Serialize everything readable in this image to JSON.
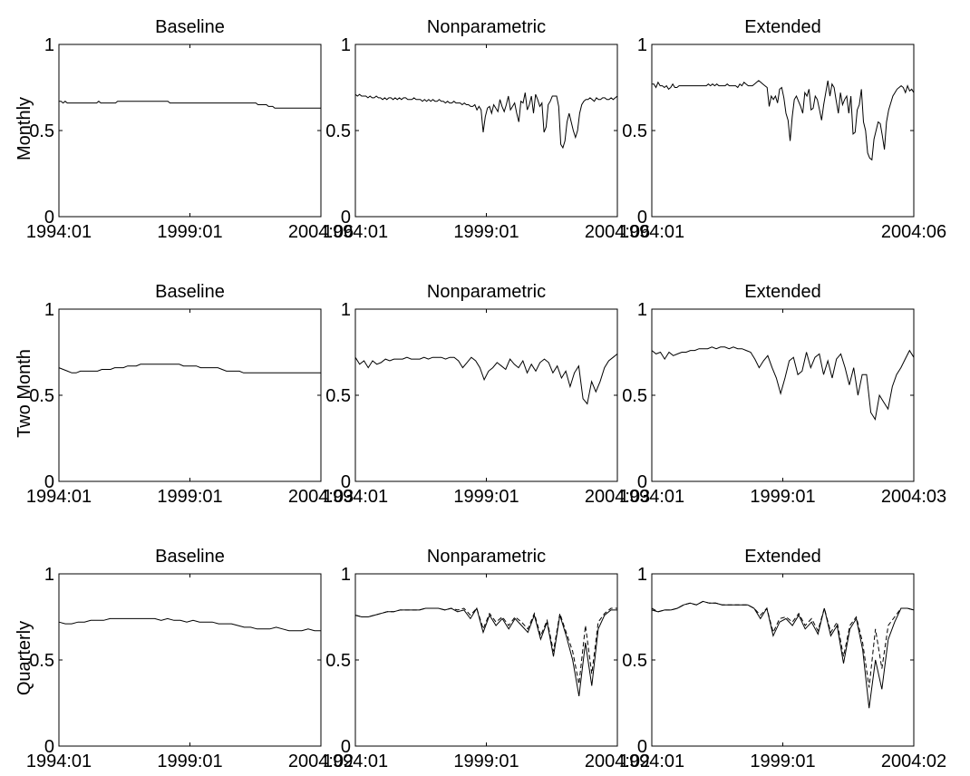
{
  "figure": {
    "row_labels": [
      "Monthly",
      "Two Month",
      "Quarterly"
    ],
    "col_titles": [
      "Baseline",
      "Nonparametric",
      "Extended"
    ]
  },
  "chart_data": [
    {
      "type": "line",
      "title": "Baseline",
      "row_label": "Monthly",
      "xtick_labels": [
        "1994:01",
        "1999:01",
        "2004:06"
      ],
      "ylim": [
        0,
        1
      ],
      "yticks": [
        0,
        0.5,
        1
      ],
      "series": [
        {
          "style": "solid",
          "values": [
            0.67,
            0.67,
            0.66,
            0.67,
            0.66,
            0.66,
            0.66,
            0.66,
            0.66,
            0.66,
            0.66,
            0.66,
            0.66,
            0.66,
            0.66,
            0.66,
            0.66,
            0.66,
            0.66,
            0.67,
            0.66,
            0.66,
            0.66,
            0.66,
            0.66,
            0.66,
            0.66,
            0.66,
            0.67,
            0.67,
            0.67,
            0.67,
            0.67,
            0.67,
            0.67,
            0.67,
            0.67,
            0.67,
            0.67,
            0.67,
            0.67,
            0.67,
            0.67,
            0.67,
            0.67,
            0.67,
            0.67,
            0.67,
            0.67,
            0.67,
            0.67,
            0.67,
            0.67,
            0.66,
            0.66,
            0.66,
            0.66,
            0.66,
            0.66,
            0.66,
            0.66,
            0.66,
            0.66,
            0.66,
            0.66,
            0.66,
            0.66,
            0.66,
            0.66,
            0.66,
            0.66,
            0.66,
            0.66,
            0.66,
            0.66,
            0.66,
            0.66,
            0.66,
            0.66,
            0.66,
            0.66,
            0.66,
            0.66,
            0.66,
            0.66,
            0.66,
            0.66,
            0.66,
            0.66,
            0.66,
            0.66,
            0.66,
            0.66,
            0.66,
            0.66,
            0.65,
            0.65,
            0.65,
            0.65,
            0.65,
            0.64,
            0.64,
            0.64,
            0.63,
            0.63,
            0.63,
            0.63,
            0.63,
            0.63,
            0.63,
            0.63,
            0.63,
            0.63,
            0.63,
            0.63,
            0.63,
            0.63,
            0.63,
            0.63,
            0.63,
            0.63,
            0.63,
            0.63,
            0.63,
            0.63,
            0.63
          ]
        }
      ]
    },
    {
      "type": "line",
      "title": "Nonparametric",
      "row_label": "Monthly",
      "xtick_labels": [
        "1994:01",
        "1999:01",
        "2004:06"
      ],
      "ylim": [
        0,
        1
      ],
      "yticks": [
        0,
        0.5,
        1
      ],
      "series": [
        {
          "style": "solid",
          "values": [
            0.71,
            0.7,
            0.71,
            0.7,
            0.7,
            0.7,
            0.69,
            0.7,
            0.69,
            0.69,
            0.7,
            0.69,
            0.69,
            0.68,
            0.69,
            0.68,
            0.69,
            0.69,
            0.68,
            0.69,
            0.68,
            0.69,
            0.68,
            0.69,
            0.69,
            0.68,
            0.68,
            0.68,
            0.69,
            0.68,
            0.68,
            0.68,
            0.67,
            0.68,
            0.67,
            0.68,
            0.67,
            0.68,
            0.67,
            0.67,
            0.68,
            0.67,
            0.67,
            0.66,
            0.67,
            0.66,
            0.66,
            0.67,
            0.66,
            0.66,
            0.66,
            0.65,
            0.66,
            0.65,
            0.65,
            0.64,
            0.64,
            0.65,
            0.62,
            0.64,
            0.62,
            0.49,
            0.58,
            0.63,
            0.64,
            0.6,
            0.65,
            0.63,
            0.61,
            0.68,
            0.64,
            0.61,
            0.65,
            0.7,
            0.62,
            0.64,
            0.66,
            0.6,
            0.55,
            0.67,
            0.66,
            0.72,
            0.62,
            0.65,
            0.7,
            0.6,
            0.71,
            0.68,
            0.64,
            0.66,
            0.49,
            0.52,
            0.65,
            0.67,
            0.7,
            0.7,
            0.7,
            0.64,
            0.42,
            0.4,
            0.44,
            0.55,
            0.6,
            0.55,
            0.5,
            0.46,
            0.5,
            0.6,
            0.65,
            0.67,
            0.68,
            0.68,
            0.69,
            0.68,
            0.67,
            0.69,
            0.68,
            0.68,
            0.69,
            0.69,
            0.68,
            0.68,
            0.69,
            0.68,
            0.69,
            0.7
          ]
        }
      ]
    },
    {
      "type": "line",
      "title": "Extended",
      "row_label": "Monthly",
      "xtick_labels": [
        "1994:01",
        "2004:06"
      ],
      "ylim": [
        0,
        1
      ],
      "yticks": [
        0,
        0.5,
        1
      ],
      "series": [
        {
          "style": "solid",
          "values": [
            0.77,
            0.77,
            0.75,
            0.78,
            0.76,
            0.76,
            0.75,
            0.76,
            0.74,
            0.75,
            0.77,
            0.75,
            0.75,
            0.76,
            0.76,
            0.76,
            0.76,
            0.76,
            0.76,
            0.76,
            0.76,
            0.76,
            0.76,
            0.76,
            0.76,
            0.76,
            0.76,
            0.77,
            0.76,
            0.77,
            0.76,
            0.77,
            0.76,
            0.76,
            0.76,
            0.76,
            0.77,
            0.76,
            0.76,
            0.76,
            0.76,
            0.75,
            0.77,
            0.76,
            0.78,
            0.77,
            0.76,
            0.76,
            0.76,
            0.77,
            0.78,
            0.79,
            0.78,
            0.77,
            0.76,
            0.75,
            0.64,
            0.7,
            0.68,
            0.7,
            0.66,
            0.74,
            0.75,
            0.69,
            0.6,
            0.56,
            0.44,
            0.58,
            0.68,
            0.7,
            0.67,
            0.64,
            0.6,
            0.72,
            0.7,
            0.74,
            0.62,
            0.63,
            0.7,
            0.68,
            0.62,
            0.56,
            0.65,
            0.72,
            0.79,
            0.7,
            0.77,
            0.75,
            0.67,
            0.6,
            0.72,
            0.65,
            0.68,
            0.7,
            0.6,
            0.7,
            0.48,
            0.49,
            0.62,
            0.65,
            0.74,
            0.55,
            0.5,
            0.37,
            0.34,
            0.33,
            0.45,
            0.5,
            0.55,
            0.54,
            0.47,
            0.39,
            0.55,
            0.62,
            0.66,
            0.7,
            0.72,
            0.74,
            0.75,
            0.76,
            0.75,
            0.72,
            0.76,
            0.73,
            0.74,
            0.72
          ]
        }
      ]
    },
    {
      "type": "line",
      "title": "Baseline",
      "row_label": "Two Month",
      "xtick_labels": [
        "1994:01",
        "1999:01",
        "2004:03"
      ],
      "ylim": [
        0,
        1
      ],
      "yticks": [
        0,
        0.5,
        1
      ],
      "series": [
        {
          "style": "solid",
          "values": [
            0.66,
            0.65,
            0.64,
            0.63,
            0.63,
            0.64,
            0.64,
            0.64,
            0.64,
            0.64,
            0.65,
            0.65,
            0.65,
            0.66,
            0.66,
            0.66,
            0.67,
            0.67,
            0.67,
            0.68,
            0.68,
            0.68,
            0.68,
            0.68,
            0.68,
            0.68,
            0.68,
            0.68,
            0.68,
            0.67,
            0.67,
            0.67,
            0.67,
            0.66,
            0.66,
            0.66,
            0.66,
            0.66,
            0.65,
            0.64,
            0.64,
            0.64,
            0.64,
            0.63,
            0.63,
            0.63,
            0.63,
            0.63,
            0.63,
            0.63,
            0.63,
            0.63,
            0.63,
            0.63,
            0.63,
            0.63,
            0.63,
            0.63,
            0.63,
            0.63,
            0.63,
            0.63
          ]
        }
      ]
    },
    {
      "type": "line",
      "title": "Nonparametric",
      "row_label": "Two Month",
      "xtick_labels": [
        "1994:01",
        "1999:01",
        "2004:03"
      ],
      "ylim": [
        0,
        1
      ],
      "yticks": [
        0,
        0.5,
        1
      ],
      "series": [
        {
          "style": "solid",
          "values": [
            0.72,
            0.68,
            0.7,
            0.66,
            0.7,
            0.68,
            0.69,
            0.71,
            0.7,
            0.71,
            0.71,
            0.71,
            0.72,
            0.71,
            0.71,
            0.71,
            0.72,
            0.71,
            0.72,
            0.72,
            0.72,
            0.71,
            0.72,
            0.72,
            0.7,
            0.66,
            0.69,
            0.72,
            0.7,
            0.66,
            0.59,
            0.64,
            0.66,
            0.69,
            0.67,
            0.65,
            0.71,
            0.68,
            0.66,
            0.7,
            0.63,
            0.68,
            0.64,
            0.69,
            0.71,
            0.69,
            0.63,
            0.67,
            0.6,
            0.64,
            0.55,
            0.63,
            0.67,
            0.48,
            0.45,
            0.58,
            0.52,
            0.58,
            0.66,
            0.7,
            0.72,
            0.74
          ]
        }
      ]
    },
    {
      "type": "line",
      "title": "Extended",
      "row_label": "Two Month",
      "xtick_labels": [
        "1994:01",
        "1999:01",
        "2004:03"
      ],
      "ylim": [
        0,
        1
      ],
      "yticks": [
        0,
        0.5,
        1
      ],
      "series": [
        {
          "style": "solid",
          "values": [
            0.76,
            0.74,
            0.75,
            0.71,
            0.75,
            0.73,
            0.74,
            0.75,
            0.75,
            0.76,
            0.76,
            0.77,
            0.77,
            0.77,
            0.78,
            0.77,
            0.78,
            0.78,
            0.77,
            0.78,
            0.77,
            0.77,
            0.76,
            0.75,
            0.71,
            0.66,
            0.7,
            0.73,
            0.66,
            0.6,
            0.51,
            0.6,
            0.7,
            0.72,
            0.62,
            0.64,
            0.75,
            0.66,
            0.72,
            0.74,
            0.62,
            0.7,
            0.6,
            0.71,
            0.74,
            0.66,
            0.56,
            0.66,
            0.5,
            0.62,
            0.62,
            0.4,
            0.36,
            0.5,
            0.46,
            0.42,
            0.55,
            0.62,
            0.66,
            0.71,
            0.76,
            0.72
          ]
        }
      ]
    },
    {
      "type": "line",
      "title": "Baseline",
      "row_label": "Quarterly",
      "xtick_labels": [
        "1994:01",
        "1999:01",
        "2004:02"
      ],
      "ylim": [
        0,
        1
      ],
      "yticks": [
        0,
        0.5,
        1
      ],
      "series": [
        {
          "style": "solid",
          "values": [
            0.72,
            0.71,
            0.71,
            0.72,
            0.72,
            0.73,
            0.73,
            0.73,
            0.74,
            0.74,
            0.74,
            0.74,
            0.74,
            0.74,
            0.74,
            0.74,
            0.73,
            0.74,
            0.73,
            0.73,
            0.72,
            0.73,
            0.72,
            0.72,
            0.72,
            0.71,
            0.71,
            0.71,
            0.7,
            0.69,
            0.69,
            0.68,
            0.68,
            0.68,
            0.69,
            0.68,
            0.67,
            0.67,
            0.67,
            0.68,
            0.67,
            0.67
          ]
        }
      ]
    },
    {
      "type": "line",
      "title": "Nonparametric",
      "row_label": "Quarterly",
      "xtick_labels": [
        "1994:01",
        "1999:01",
        "2004:02"
      ],
      "ylim": [
        0,
        1
      ],
      "yticks": [
        0,
        0.5,
        1
      ],
      "series": [
        {
          "style": "solid",
          "values": [
            0.76,
            0.75,
            0.75,
            0.76,
            0.77,
            0.78,
            0.78,
            0.79,
            0.79,
            0.79,
            0.79,
            0.8,
            0.8,
            0.8,
            0.79,
            0.8,
            0.78,
            0.79,
            0.74,
            0.8,
            0.66,
            0.76,
            0.7,
            0.74,
            0.68,
            0.74,
            0.7,
            0.66,
            0.76,
            0.62,
            0.72,
            0.52,
            0.76,
            0.64,
            0.5,
            0.29,
            0.6,
            0.35,
            0.68,
            0.76,
            0.79,
            0.79
          ]
        },
        {
          "style": "dashed",
          "values": [
            0.76,
            0.75,
            0.75,
            0.76,
            0.77,
            0.78,
            0.78,
            0.79,
            0.79,
            0.79,
            0.79,
            0.8,
            0.8,
            0.8,
            0.79,
            0.8,
            0.79,
            0.8,
            0.76,
            0.8,
            0.68,
            0.77,
            0.72,
            0.75,
            0.7,
            0.75,
            0.72,
            0.68,
            0.77,
            0.64,
            0.73,
            0.55,
            0.77,
            0.66,
            0.55,
            0.36,
            0.7,
            0.42,
            0.72,
            0.77,
            0.8,
            0.8
          ]
        }
      ]
    },
    {
      "type": "line",
      "title": "Extended",
      "row_label": "Quarterly",
      "xtick_labels": [
        "1994:01",
        "1999:01",
        "2004:02"
      ],
      "ylim": [
        0,
        1
      ],
      "yticks": [
        0,
        0.5,
        1
      ],
      "series": [
        {
          "style": "solid",
          "values": [
            0.79,
            0.78,
            0.79,
            0.79,
            0.8,
            0.82,
            0.83,
            0.82,
            0.84,
            0.83,
            0.83,
            0.82,
            0.82,
            0.82,
            0.82,
            0.82,
            0.8,
            0.74,
            0.8,
            0.64,
            0.72,
            0.74,
            0.7,
            0.76,
            0.68,
            0.72,
            0.65,
            0.8,
            0.64,
            0.7,
            0.48,
            0.68,
            0.74,
            0.56,
            0.22,
            0.5,
            0.33,
            0.62,
            0.72,
            0.8,
            0.8,
            0.79
          ]
        },
        {
          "style": "dashed",
          "values": [
            0.8,
            0.78,
            0.79,
            0.79,
            0.8,
            0.82,
            0.83,
            0.82,
            0.84,
            0.83,
            0.83,
            0.82,
            0.82,
            0.82,
            0.82,
            0.82,
            0.8,
            0.76,
            0.8,
            0.66,
            0.74,
            0.75,
            0.72,
            0.77,
            0.7,
            0.74,
            0.67,
            0.8,
            0.66,
            0.72,
            0.52,
            0.7,
            0.75,
            0.6,
            0.34,
            0.68,
            0.45,
            0.7,
            0.75,
            0.8,
            0.8,
            0.79
          ]
        }
      ]
    }
  ]
}
